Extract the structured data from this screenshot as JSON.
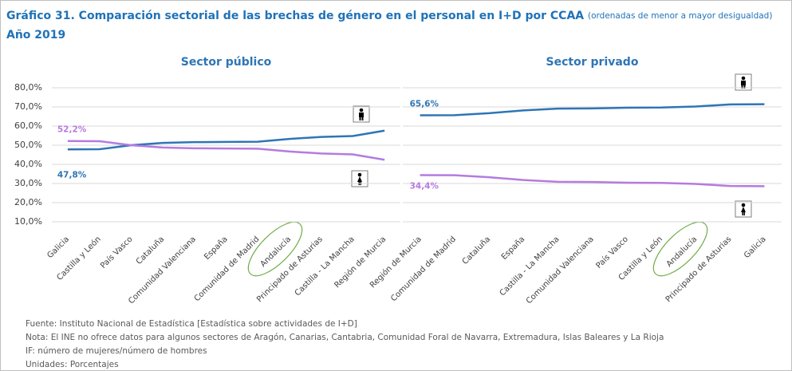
{
  "header": {
    "title": "Gráfico 31. Comparación sectorial de las brechas de género en el personal en I+D por CCAA",
    "title_note": "(ordenadas de menor a mayor desigualdad)",
    "subtitle": "Año 2019"
  },
  "notes": [
    "Fuente: Instituto Nacional de Estadística  [Estadística sobre actividades de I+D]",
    "Nota: El INE no ofrece datos para algunos sectores de Aragón, Canarias, Cantabria, Comunidad Foral de Navarra, Extremadura, Islas Baleares y La Rioja",
    "IF: número de mujeres/número de hombres",
    "Unidades: Porcentajes"
  ],
  "chart_data": [
    {
      "type": "line",
      "title": "Sector público",
      "categories": [
        "Galicia",
        "Castilla y León",
        "País Vasco",
        "Cataluña",
        "Comunidad Valenciana",
        "España",
        "Comunidad de Madrid",
        "Andalucía",
        "Principado de Asturias",
        "Castilla - La Mancha",
        "Región de Murcia"
      ],
      "series": [
        {
          "color": "#2e75b6",
          "values": [
            47.8,
            47.9,
            50.0,
            51.2,
            51.6,
            51.7,
            51.8,
            53.3,
            54.3,
            54.8,
            57.6
          ],
          "value_labels": [
            "47,8%",
            null,
            null,
            null,
            null,
            null,
            null,
            null,
            null,
            null,
            null
          ]
        },
        {
          "color": "#b47be0",
          "values": [
            52.2,
            52.1,
            50.0,
            48.8,
            48.4,
            48.3,
            48.2,
            46.7,
            45.7,
            45.2,
            42.4
          ],
          "value_labels": [
            "52,2%",
            null,
            null,
            null,
            null,
            null,
            null,
            null,
            null,
            null,
            null
          ]
        }
      ],
      "ylim": [
        5,
        82
      ],
      "yticks": [
        {
          "value": 10,
          "label": "10,0%"
        },
        {
          "value": 20,
          "label": "20,0%"
        },
        {
          "value": 30,
          "label": "30,0%"
        },
        {
          "value": 40,
          "label": "40,0%"
        },
        {
          "value": 50,
          "label": "50,0%"
        },
        {
          "value": 60,
          "label": "60,0%"
        },
        {
          "value": 70,
          "label": "70,0%"
        },
        {
          "value": 80,
          "label": "80,0%"
        }
      ],
      "grid": true
    },
    {
      "type": "line",
      "title": "Sector privado",
      "categories": [
        "Región de Murcia",
        "Comunidad de Madrid",
        "Cataluña",
        "España",
        "Castilla - La Mancha",
        "Comunidad Valenciana",
        "País Vasco",
        "Castilla y León",
        "Andalucía",
        "Principado de Asturias",
        "Galicia"
      ],
      "series": [
        {
          "color": "#2e75b6",
          "values": [
            65.6,
            65.7,
            66.7,
            68.2,
            69.1,
            69.2,
            69.6,
            69.7,
            70.2,
            71.3,
            71.4
          ],
          "value_labels": [
            "65,6%",
            null,
            null,
            null,
            null,
            null,
            null,
            null,
            null,
            null,
            null
          ]
        },
        {
          "color": "#b47be0",
          "values": [
            34.4,
            34.3,
            33.3,
            31.8,
            30.9,
            30.8,
            30.4,
            30.3,
            29.8,
            28.7,
            28.6
          ],
          "value_labels": [
            "34,4%",
            null,
            null,
            null,
            null,
            null,
            null,
            null,
            null,
            null,
            null
          ]
        }
      ],
      "ylim": [
        5,
        82
      ],
      "grid": true
    }
  ]
}
